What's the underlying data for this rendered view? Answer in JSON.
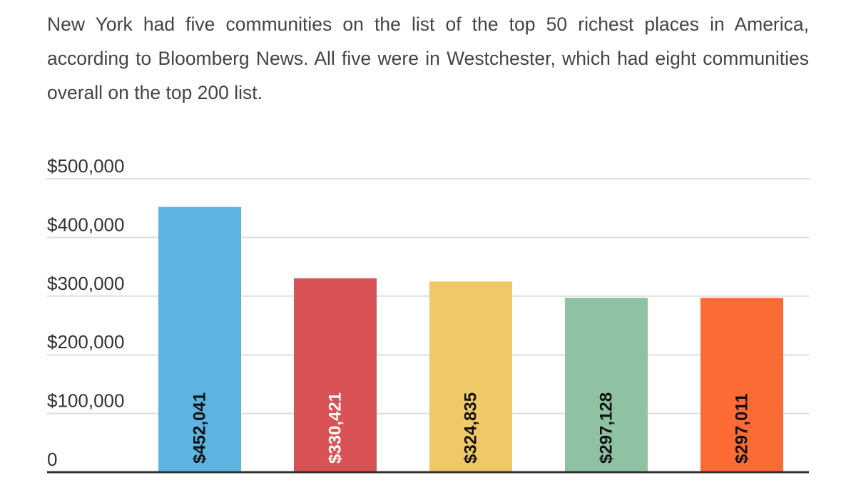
{
  "description": "New York had five communities on the list of the top 50 richest places in America, according to Bloomberg News. All five were in Westchester, which had eight communities overall on the top 200 list.",
  "chart_data": {
    "type": "bar",
    "title": "",
    "xlabel": "",
    "ylabel": "",
    "ylim": [
      0,
      500000
    ],
    "yticks": [
      0,
      100000,
      200000,
      300000,
      400000,
      500000
    ],
    "ytick_labels": [
      "0",
      "$100,000",
      "$200,000",
      "$300,000",
      "$400,000",
      "$500,000"
    ],
    "grid": true,
    "legend": "none",
    "values": [
      452041,
      330421,
      324835,
      297128,
      297011
    ],
    "data_labels": [
      "$452,041",
      "$330,421",
      "$324,835",
      "$297,128",
      "$297,011"
    ],
    "colors": [
      "#5db4e3",
      "#d95255",
      "#efc965",
      "#8ec2a3",
      "#fd6b35"
    ],
    "label_colors": [
      "#111111",
      "#ffffff",
      "#111111",
      "#111111",
      "#111111"
    ]
  }
}
